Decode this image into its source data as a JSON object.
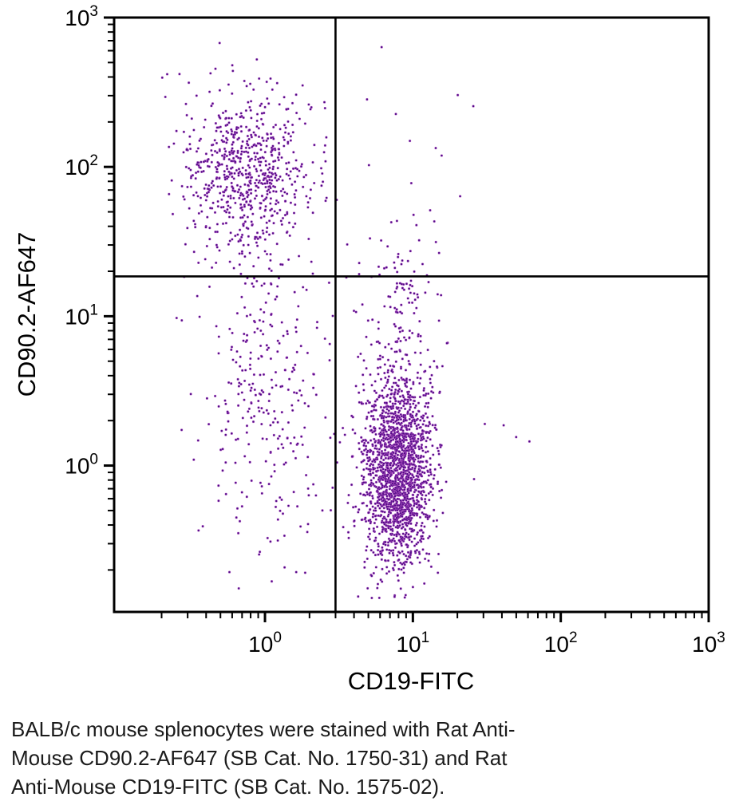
{
  "figure": {
    "caption_lines": [
      "BALB/c mouse splenocytes were stained with Rat Anti-",
      "Mouse CD90.2-AF647 (SB Cat. No. 1750-31) and Rat",
      "Anti-Mouse CD19-FITC (SB Cat. No. 1575-02)."
    ]
  },
  "chart_data": {
    "type": "scatter",
    "subtype": "flow-cytometry-dot-plot",
    "title": "",
    "xlabel": "CD19-FITC",
    "ylabel": "CD90.2-AF647",
    "x_scale": "log",
    "y_scale": "log",
    "x_range_log": [
      -1.02,
      3.0
    ],
    "y_range_log": [
      -0.98,
      3.0
    ],
    "x_ticks": [
      {
        "base": "10",
        "exp": "0",
        "log": 0
      },
      {
        "base": "10",
        "exp": "1",
        "log": 1
      },
      {
        "base": "10",
        "exp": "2",
        "log": 2
      },
      {
        "base": "10",
        "exp": "3",
        "log": 3
      }
    ],
    "y_ticks": [
      {
        "base": "10",
        "exp": "0",
        "log": 0
      },
      {
        "base": "10",
        "exp": "1",
        "log": 1
      },
      {
        "base": "10",
        "exp": "2",
        "log": 2
      },
      {
        "base": "10",
        "exp": "3",
        "log": 3
      }
    ],
    "grid": false,
    "legend": false,
    "quadrant_gates": {
      "x_value": 3.0,
      "x_log": 0.477,
      "y_value": 18.5,
      "y_log": 1.267
    },
    "colors": {
      "dot_core": "#4d0b85",
      "dot_halo": "#c159cc",
      "axis": "#000000"
    },
    "populations": [
      {
        "name": "CD90.2-positive CD19-negative cluster",
        "count": 720,
        "cx_log": -0.105,
        "cy_log": 1.945,
        "sx_dec": 0.22,
        "sy_dec": 0.28
      },
      {
        "name": "left scatter trailing below gate",
        "count": 295,
        "cx_log": -0.01,
        "cy_log": 0.5,
        "sx_dec": 0.23,
        "sy_dec": 0.55
      },
      {
        "name": "CD19-positive CD90.2-negative cluster",
        "count": 1900,
        "cx_log": 0.895,
        "cy_log": -0.02,
        "sx_dec": 0.12,
        "sy_dec": 0.33
      },
      {
        "name": "CD19-positive upward tail",
        "count": 110,
        "cx_log": 0.93,
        "cy_log": 1.13,
        "sx_dec": 0.14,
        "sy_dec": 0.25
      },
      {
        "name": "upper-right sparse events",
        "count": 12,
        "cx_log": 0.97,
        "cy_log": 2.05,
        "sx_dec": 0.27,
        "sy_dec": 0.28
      },
      {
        "name": "right-side outliers",
        "count": 8,
        "cx_log": 1.55,
        "cy_log": 0.1,
        "sx_dec": 0.3,
        "sy_dec": 0.14
      }
    ],
    "random_seed": 20130707
  }
}
